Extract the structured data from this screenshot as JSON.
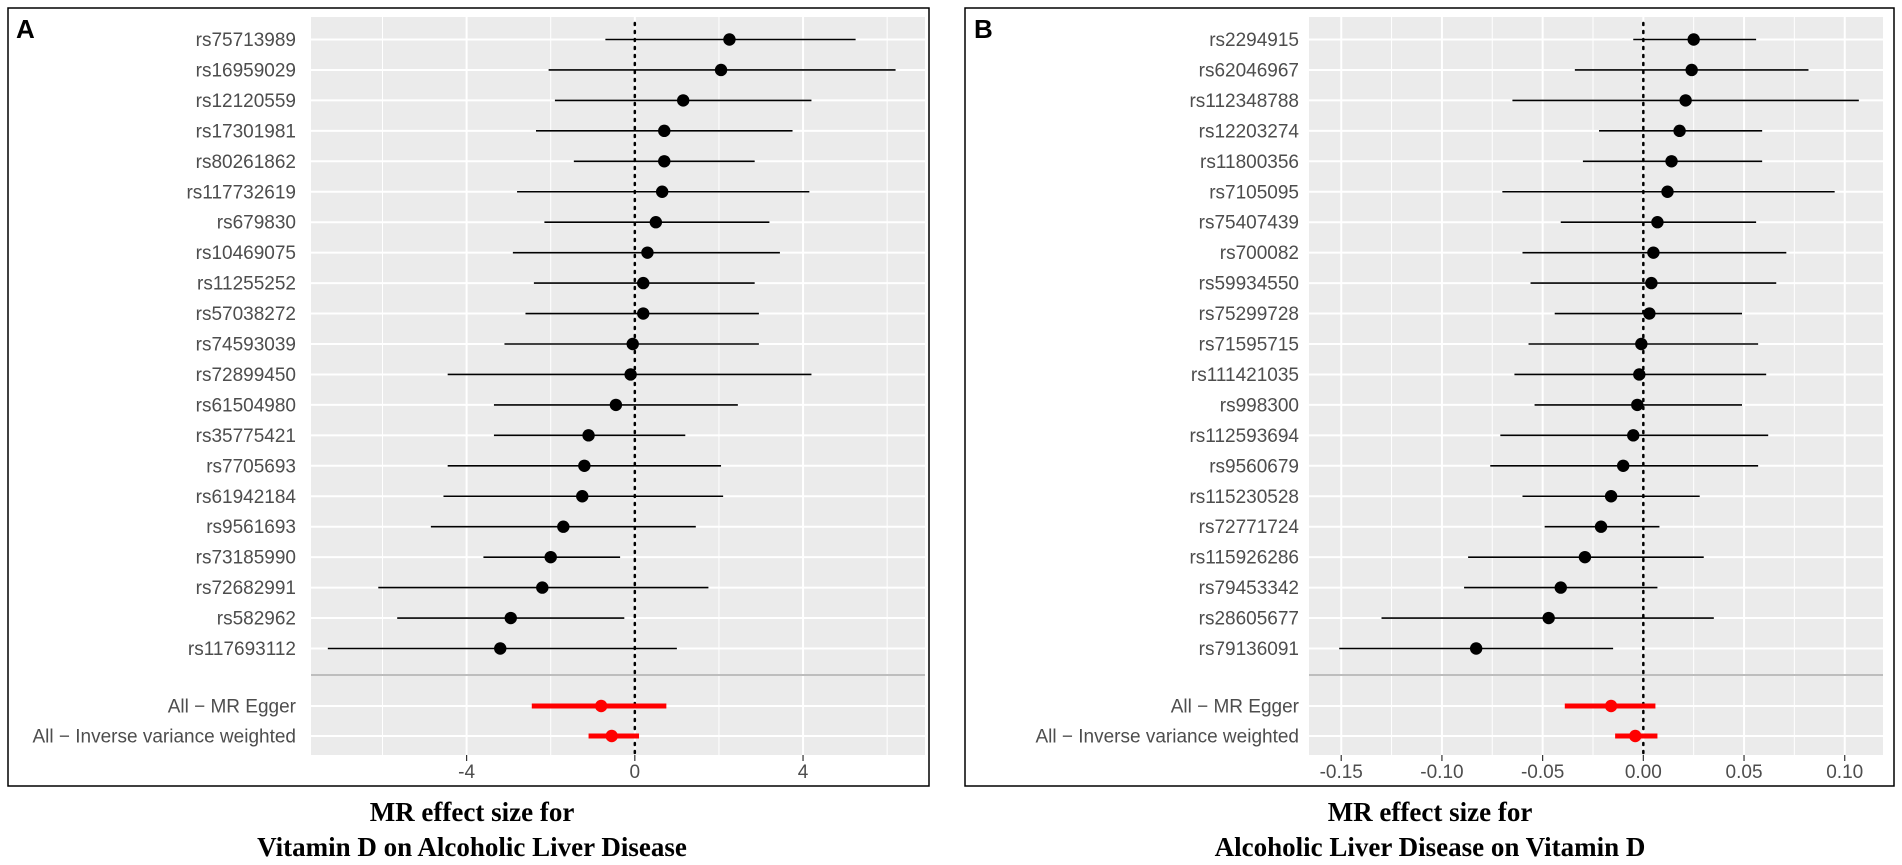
{
  "chart_data": [
    {
      "type": "forest",
      "panel_label": "A",
      "title_line1": "MR effect size for",
      "title_line2": "Vitamin D on Alcoholic Liver Disease",
      "xlabel": "MR effect size for Vitamin D on Alcoholic Liver Disease",
      "xlim": [
        -7.7,
        6.9
      ],
      "xticks": [
        -4,
        0,
        4
      ],
      "xtick_labels": [
        "-4",
        "0",
        "4"
      ],
      "snps": [
        {
          "label": "rs75713989",
          "est": 2.25,
          "lo": -0.7,
          "hi": 5.25
        },
        {
          "label": "rs16959029",
          "est": 2.05,
          "lo": -2.05,
          "hi": 6.2
        },
        {
          "label": "rs12120559",
          "est": 1.15,
          "lo": -1.9,
          "hi": 4.2
        },
        {
          "label": "rs17301981",
          "est": 0.7,
          "lo": -2.35,
          "hi": 3.75
        },
        {
          "label": "rs80261862",
          "est": 0.7,
          "lo": -1.45,
          "hi": 2.85
        },
        {
          "label": "rs117732619",
          "est": 0.65,
          "lo": -2.8,
          "hi": 4.15
        },
        {
          "label": "rs679830",
          "est": 0.5,
          "lo": -2.15,
          "hi": 3.2
        },
        {
          "label": "rs10469075",
          "est": 0.3,
          "lo": -2.9,
          "hi": 3.45
        },
        {
          "label": "rs11255252",
          "est": 0.2,
          "lo": -2.4,
          "hi": 2.85
        },
        {
          "label": "rs57038272",
          "est": 0.2,
          "lo": -2.6,
          "hi": 2.95
        },
        {
          "label": "rs74593039",
          "est": -0.05,
          "lo": -3.1,
          "hi": 2.95
        },
        {
          "label": "rs72899450",
          "est": -0.1,
          "lo": -4.45,
          "hi": 4.2
        },
        {
          "label": "rs61504980",
          "est": -0.45,
          "lo": -3.35,
          "hi": 2.45
        },
        {
          "label": "rs35775421",
          "est": -1.1,
          "lo": -3.35,
          "hi": 1.2
        },
        {
          "label": "rs7705693",
          "est": -1.2,
          "lo": -4.45,
          "hi": 2.05
        },
        {
          "label": "rs61942184",
          "est": -1.25,
          "lo": -4.55,
          "hi": 2.1
        },
        {
          "label": "rs9561693",
          "est": -1.7,
          "lo": -4.85,
          "hi": 1.45
        },
        {
          "label": "rs73185990",
          "est": -2.0,
          "lo": -3.6,
          "hi": -0.35
        },
        {
          "label": "rs72682991",
          "est": -2.2,
          "lo": -6.1,
          "hi": 1.75
        },
        {
          "label": "rs582962",
          "est": -2.95,
          "lo": -5.65,
          "hi": -0.25
        },
        {
          "label": "rs117693112",
          "est": -3.2,
          "lo": -7.3,
          "hi": 1.0
        }
      ],
      "summary": [
        {
          "label": "All − MR Egger",
          "est": -0.8,
          "lo": -2.45,
          "hi": 0.75
        },
        {
          "label": "All − Inverse variance weighted",
          "est": -0.55,
          "lo": -1.1,
          "hi": 0.1
        }
      ]
    },
    {
      "type": "forest",
      "panel_label": "B",
      "title_line1": "MR effect size for",
      "title_line2": "Alcoholic Liver Disease on Vitamin D",
      "xlabel": "MR effect size for Alcoholic Liver Disease on Vitamin D",
      "xlim": [
        -0.166,
        0.119
      ],
      "xticks": [
        -0.15,
        -0.1,
        -0.05,
        0.0,
        0.05,
        0.1
      ],
      "xtick_labels": [
        "-0.15",
        "-0.10",
        "-0.05",
        "0.00",
        "0.05",
        "0.10"
      ],
      "snps": [
        {
          "label": "rs2294915",
          "est": 0.025,
          "lo": -0.005,
          "hi": 0.056
        },
        {
          "label": "rs62046967",
          "est": 0.024,
          "lo": -0.034,
          "hi": 0.082
        },
        {
          "label": "rs112348788",
          "est": 0.021,
          "lo": -0.065,
          "hi": 0.107
        },
        {
          "label": "rs12203274",
          "est": 0.018,
          "lo": -0.022,
          "hi": 0.059
        },
        {
          "label": "rs11800356",
          "est": 0.014,
          "lo": -0.03,
          "hi": 0.059
        },
        {
          "label": "rs7105095",
          "est": 0.012,
          "lo": -0.07,
          "hi": 0.095
        },
        {
          "label": "rs75407439",
          "est": 0.007,
          "lo": -0.041,
          "hi": 0.056
        },
        {
          "label": "rs700082",
          "est": 0.005,
          "lo": -0.06,
          "hi": 0.071
        },
        {
          "label": "rs59934550",
          "est": 0.004,
          "lo": -0.056,
          "hi": 0.066
        },
        {
          "label": "rs75299728",
          "est": 0.003,
          "lo": -0.044,
          "hi": 0.049
        },
        {
          "label": "rs71595715",
          "est": -0.001,
          "lo": -0.057,
          "hi": 0.057
        },
        {
          "label": "rs111421035",
          "est": -0.002,
          "lo": -0.064,
          "hi": 0.061
        },
        {
          "label": "rs998300",
          "est": -0.003,
          "lo": -0.054,
          "hi": 0.049
        },
        {
          "label": "rs112593694",
          "est": -0.005,
          "lo": -0.071,
          "hi": 0.062
        },
        {
          "label": "rs9560679",
          "est": -0.01,
          "lo": -0.076,
          "hi": 0.057
        },
        {
          "label": "rs115230528",
          "est": -0.016,
          "lo": -0.06,
          "hi": 0.028
        },
        {
          "label": "rs72771724",
          "est": -0.021,
          "lo": -0.049,
          "hi": 0.008
        },
        {
          "label": "rs115926286",
          "est": -0.029,
          "lo": -0.087,
          "hi": 0.03
        },
        {
          "label": "rs79453342",
          "est": -0.041,
          "lo": -0.089,
          "hi": 0.007
        },
        {
          "label": "rs28605677",
          "est": -0.047,
          "lo": -0.13,
          "hi": 0.035
        },
        {
          "label": "rs79136091",
          "est": -0.083,
          "lo": -0.151,
          "hi": -0.015
        }
      ],
      "summary": [
        {
          "label": "All − MR Egger",
          "est": -0.016,
          "lo": -0.039,
          "hi": 0.006
        },
        {
          "label": "All − Inverse variance weighted",
          "est": -0.004,
          "lo": -0.014,
          "hi": 0.007
        }
      ]
    }
  ]
}
